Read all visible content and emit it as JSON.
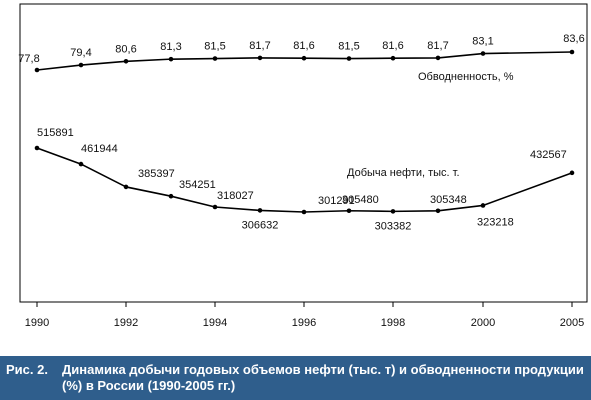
{
  "chart_data": {
    "type": "line",
    "x": [
      1990,
      1991,
      1992,
      1993,
      1994,
      1995,
      1996,
      1997,
      1998,
      1999,
      2000,
      2005
    ],
    "x_tick_labels": [
      "1990",
      "1992",
      "1994",
      "1996",
      "1998",
      "2000",
      "2005"
    ],
    "x_tick_values": [
      1990,
      1992,
      1994,
      1996,
      1998,
      2000,
      2005
    ],
    "series": [
      {
        "name": "Обводненность, %",
        "values": [
          77.8,
          79.4,
          80.6,
          81.3,
          81.5,
          81.7,
          81.6,
          81.5,
          81.6,
          81.7,
          83.1,
          83.6
        ],
        "labels": [
          "77,8",
          "79,4",
          "80,6",
          "81,3",
          "81,5",
          "81,7",
          "81,6",
          "81,5",
          "81,6",
          "81,7",
          "83,1",
          "83,6"
        ],
        "color": "#000000"
      },
      {
        "name": "Добыча нефти, тыс. т.",
        "values": [
          515891,
          461944,
          385397,
          354251,
          318027,
          306632,
          301291,
          305480,
          303382,
          305348,
          323218,
          432567
        ],
        "labels": [
          "515891",
          "461944",
          "385397",
          "354251",
          "318027",
          "306632",
          "301291",
          "305480",
          "303382",
          "305348",
          "323218",
          "432567"
        ],
        "color": "#000000"
      }
    ],
    "grid": false,
    "title": "",
    "xlabel": "",
    "ylabel": ""
  },
  "caption": {
    "label": "Рис. 2.",
    "text": "Динамика добычи годовых объемов нефти (тыс. т) и обводненности продукции (%) в России (1990-2005 гг.)"
  },
  "colors": {
    "caption_background": "#2f5e8c",
    "caption_text": "#ffffff"
  }
}
